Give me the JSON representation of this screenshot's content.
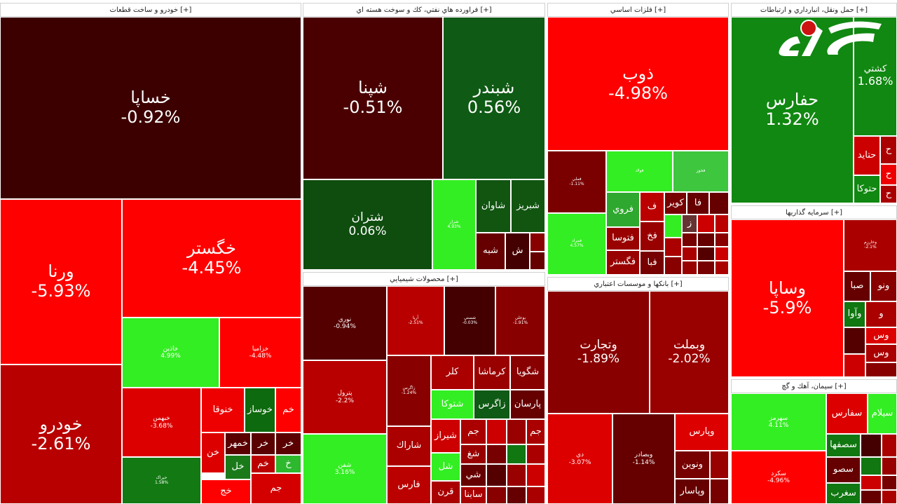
{
  "sectors": {
    "auto": "خودرو و ساخت قطعات [+]",
    "oil": "فراورده هاي نفتي، كك و سوخت هسته اي [+]",
    "metals": "فلزات اساسي [+]",
    "transport": "حمل ونقل، انبارداري و ارتباطات [+]",
    "chem": "محصولات شيميايي [+]",
    "banks": "بانكها و موسسات اعتباري [+]",
    "invest": "سرمايه گذاريها [+]",
    "cement": "سيمان، آهك و گچ [+]"
  },
  "tiles": [
    {
      "name": "خساپا",
      "pct": "-0.92%",
      "color": "#3d0000"
    },
    {
      "name": "ورنا",
      "pct": "-5.93%",
      "color": "#ff0000"
    },
    {
      "name": "خگستر",
      "pct": "-4.45%",
      "color": "#ff0000"
    },
    {
      "name": "خودرو",
      "pct": "-2.61%",
      "color": "#b80000"
    },
    {
      "name": "خاذين",
      "pct": "4.99%",
      "color": "#33ee22"
    },
    {
      "name": "خزاميا",
      "pct": "-4.48%",
      "color": "#ff0000"
    },
    {
      "name": "خبهمن",
      "pct": "-3.68%",
      "color": "#dd0000"
    },
    {
      "name": "خنوقا",
      "pct": "",
      "color": "#ee0000"
    },
    {
      "name": "خوساز",
      "pct": "",
      "color": "#0e6a0e"
    },
    {
      "name": "خم",
      "pct": "",
      "color": "#ff0000"
    },
    {
      "name": "خن",
      "pct": "",
      "color": "#dd0000"
    },
    {
      "name": "خمهر",
      "pct": "",
      "color": "#5a0000"
    },
    {
      "name": "خر",
      "pct": "",
      "color": "#5a0000"
    },
    {
      "name": "خر",
      "pct": "",
      "color": "#5a0000"
    },
    {
      "name": "خل",
      "pct": "",
      "color": "#1a7a1a"
    },
    {
      "name": "خم",
      "pct": "",
      "color": "#bb0000"
    },
    {
      "name": "خ",
      "pct": "",
      "color": "#2db82d"
    },
    {
      "name": "جم",
      "pct": "",
      "color": "#d40000"
    },
    {
      "name": "حپراک",
      "pct": "1.58%",
      "color": "#137a13"
    },
    {
      "name": "خج",
      "pct": "",
      "color": "#ff0000"
    },
    {
      "name": "شپنا",
      "pct": "-0.51%",
      "color": "#4a0000"
    },
    {
      "name": "شبندر",
      "pct": "0.56%",
      "color": "#0f5a14"
    },
    {
      "name": "شتران",
      "pct": "0.06%",
      "color": "#0f4d0f"
    },
    {
      "name": "شراز",
      "pct": "4.93%",
      "color": "#33ee22"
    },
    {
      "name": "شاوان",
      "pct": "",
      "color": "#115511"
    },
    {
      "name": "شبريز",
      "pct": "",
      "color": "#115511"
    },
    {
      "name": "شبه",
      "pct": "",
      "color": "#660000"
    },
    {
      "name": "ش",
      "pct": "",
      "color": "#440000"
    },
    {
      "name": "ذوب",
      "pct": "-4.98%",
      "color": "#ff0000"
    },
    {
      "name": "فملي",
      "pct": "-1.11%",
      "color": "#7a0000"
    },
    {
      "name": "فولاد",
      "pct": "",
      "color": "#33ee22"
    },
    {
      "name": "فخوز",
      "pct": "",
      "color": "#3ec63e"
    },
    {
      "name": "فمراد",
      "pct": "4.57%",
      "color": "#33ee22"
    },
    {
      "name": "فروي",
      "pct": "",
      "color": "#2ea82e"
    },
    {
      "name": "ف",
      "pct": "",
      "color": "#bb0000"
    },
    {
      "name": "كوير",
      "pct": "",
      "color": "#770000"
    },
    {
      "name": "فا",
      "pct": "",
      "color": "#660000"
    },
    {
      "name": "فتوسا",
      "pct": "",
      "color": "#990000"
    },
    {
      "name": "فخ",
      "pct": "",
      "color": "#990000"
    },
    {
      "name": "ز",
      "pct": "",
      "color": "#663333"
    },
    {
      "name": "فگستر",
      "pct": "",
      "color": "#990000"
    },
    {
      "name": "فبا",
      "pct": "",
      "color": "#770000"
    },
    {
      "name": "حفارس",
      "pct": "1.32%",
      "color": "#118811"
    },
    {
      "name": "كشتي",
      "pct": "1.68%",
      "color": "#118811"
    },
    {
      "name": "حتايد",
      "pct": "",
      "color": "#cc0000"
    },
    {
      "name": "حتوكا",
      "pct": "",
      "color": "#118811"
    },
    {
      "name": "ح",
      "pct": "",
      "color": "#aa0000"
    },
    {
      "name": "ح",
      "pct": "",
      "color": "#ee0000"
    },
    {
      "name": "ح",
      "pct": "",
      "color": "#aa0000"
    },
    {
      "name": "نوري",
      "pct": "-0.94%",
      "color": "#550000"
    },
    {
      "name": "آريا",
      "pct": "-2.51%",
      "color": "#b80000"
    },
    {
      "name": "شستي",
      "pct": "-0.03%",
      "color": "#440000"
    },
    {
      "name": "بوعلي",
      "pct": "-1.91%",
      "color": "#880000"
    },
    {
      "name": "پترول",
      "pct": "-2.2%",
      "color": "#b80000"
    },
    {
      "name": "زاگرس",
      "pct": "-1.24%",
      "color": "#880000"
    },
    {
      "name": "كلر",
      "pct": "",
      "color": "#aa0000"
    },
    {
      "name": "كرماشا",
      "pct": "",
      "color": "#990000"
    },
    {
      "name": "شگويا",
      "pct": "",
      "color": "#880000"
    },
    {
      "name": "شتوكا",
      "pct": "",
      "color": "#33ee22"
    },
    {
      "name": "زاگرس",
      "pct": "",
      "color": "#0f5a14"
    },
    {
      "name": "پارسان",
      "pct": "",
      "color": "#660000"
    },
    {
      "name": "شفن",
      "pct": "3.16%",
      "color": "#33ee22"
    },
    {
      "name": "شاراك",
      "pct": "",
      "color": "#aa0000"
    },
    {
      "name": "شيراز",
      "pct": "",
      "color": "#cc0000"
    },
    {
      "name": "جم",
      "pct": "",
      "color": "#aa0000"
    },
    {
      "name": "جم",
      "pct": "",
      "color": "#aa0000"
    },
    {
      "name": "فارس",
      "pct": "",
      "color": "#bb0000"
    },
    {
      "name": "شغ",
      "pct": "",
      "color": "#990000"
    },
    {
      "name": "شل",
      "pct": "",
      "color": "#33ee22"
    },
    {
      "name": "قرن",
      "pct": "",
      "color": "#aa0000"
    },
    {
      "name": "شي",
      "pct": "",
      "color": "#660000"
    },
    {
      "name": "سابنا",
      "pct": "",
      "color": "#aa0000"
    },
    {
      "name": "وتجارت",
      "pct": "-1.89%",
      "color": "#880000"
    },
    {
      "name": "وبملت",
      "pct": "-2.02%",
      "color": "#990000"
    },
    {
      "name": "دي",
      "pct": "-3.07%",
      "color": "#dd0000"
    },
    {
      "name": "وبصادر",
      "pct": "-1.14%",
      "color": "#660000"
    },
    {
      "name": "وپارس",
      "pct": "",
      "color": "#dd0000"
    },
    {
      "name": "ونوين",
      "pct": "",
      "color": "#770000"
    },
    {
      "name": "وپاسار",
      "pct": "",
      "color": "#660000"
    },
    {
      "name": "وساپا",
      "pct": "-5.9%",
      "color": "#ff0000"
    },
    {
      "name": "وخارزم",
      "pct": "-2.1%",
      "color": "#aa0000"
    },
    {
      "name": "صبا",
      "pct": "",
      "color": "#660000"
    },
    {
      "name": "ونو",
      "pct": "",
      "color": "#880000"
    },
    {
      "name": "وآوا",
      "pct": "",
      "color": "#117711"
    },
    {
      "name": "و",
      "pct": "",
      "color": "#aa0000"
    },
    {
      "name": "وس",
      "pct": "",
      "color": "#dd0000"
    },
    {
      "name": "وس",
      "pct": "",
      "color": "#aa0000"
    },
    {
      "name": "سهرمز",
      "pct": "4.11%",
      "color": "#33ee22"
    },
    {
      "name": "سفارس",
      "pct": "",
      "color": "#dd0000"
    },
    {
      "name": "سيلام",
      "pct": "",
      "color": "#33ee22"
    },
    {
      "name": "سكرد",
      "pct": "-4.96%",
      "color": "#ff0000"
    },
    {
      "name": "سصفها",
      "pct": "",
      "color": "#117711"
    },
    {
      "name": "سصو",
      "pct": "",
      "color": "#660000"
    },
    {
      "name": "سغرب",
      "pct": "",
      "color": "#117711"
    }
  ]
}
